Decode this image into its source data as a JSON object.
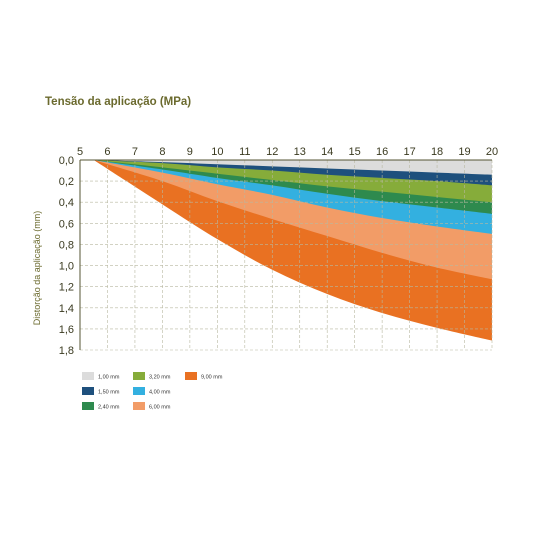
{
  "chart_data": {
    "type": "area",
    "title": "Tensão da aplicação (MPa)",
    "ylabel": "Distorção da aplicação (mm)",
    "xlabel": "",
    "x_ticks": [
      "5",
      "6",
      "7",
      "8",
      "9",
      "10",
      "11",
      "12",
      "13",
      "14",
      "15",
      "16",
      "17",
      "18",
      "19",
      "20"
    ],
    "y_ticks": [
      "0,0",
      "0,2",
      "0,4",
      "0,6",
      "0,8",
      "1,0",
      "1,2",
      "1,4",
      "1,6",
      "1,8"
    ],
    "xlim": [
      5,
      20
    ],
    "ylim": [
      0,
      1.8
    ],
    "y_inverted": true,
    "origin": {
      "x": 5.5,
      "y": 0
    },
    "grid": "dashed",
    "series": [
      {
        "name": "9,00 mm",
        "color": "#e97122",
        "x": [
          5.5,
          8,
          10,
          12,
          14,
          16,
          18,
          20
        ],
        "y": [
          0,
          0.42,
          0.75,
          1.04,
          1.27,
          1.45,
          1.59,
          1.71
        ]
      },
      {
        "name": "6,00 mm",
        "color": "#f29c67",
        "x": [
          5.5,
          8,
          10,
          12,
          14,
          16,
          18,
          20
        ],
        "y": [
          0,
          0.2,
          0.39,
          0.56,
          0.72,
          0.88,
          1.02,
          1.13
        ]
      },
      {
        "name": "4,00 mm",
        "color": "#33b0e0",
        "x": [
          5.5,
          8,
          10,
          12,
          14,
          16,
          18,
          20
        ],
        "y": [
          0,
          0.12,
          0.23,
          0.33,
          0.45,
          0.55,
          0.63,
          0.7
        ]
      },
      {
        "name": "2,40 mm",
        "color": "#2e8a4e",
        "x": [
          5.5,
          8,
          10,
          12,
          14,
          16,
          18,
          20
        ],
        "y": [
          0,
          0.09,
          0.17,
          0.24,
          0.32,
          0.39,
          0.45,
          0.51
        ]
      },
      {
        "name": "3,20 mm",
        "color": "#86ac3a",
        "x": [
          5.5,
          8,
          10,
          12,
          14,
          16,
          18,
          20
        ],
        "y": [
          0,
          0.07,
          0.13,
          0.19,
          0.25,
          0.3,
          0.35,
          0.4
        ]
      },
      {
        "name": "1,50 mm",
        "color": "#1e507d",
        "x": [
          5.5,
          8,
          10,
          12,
          14,
          16,
          18,
          20
        ],
        "y": [
          0,
          0.03,
          0.07,
          0.1,
          0.14,
          0.17,
          0.2,
          0.24
        ]
      },
      {
        "name": "1,00 mm",
        "color": "#dcdcdc",
        "x": [
          5.5,
          8,
          10,
          12,
          14,
          16,
          18,
          20
        ],
        "y": [
          0,
          0.02,
          0.04,
          0.06,
          0.08,
          0.1,
          0.12,
          0.14
        ]
      }
    ],
    "legend": [
      {
        "label": "1,00 mm",
        "color": "#dcdcdc"
      },
      {
        "label": "1,50 mm",
        "color": "#1e507d"
      },
      {
        "label": "2,40 mm",
        "color": "#2e8a4e"
      },
      {
        "label": "3,20 mm",
        "color": "#86ac3a"
      },
      {
        "label": "4,00 mm",
        "color": "#33b0e0"
      },
      {
        "label": "6,00 mm",
        "color": "#f29c67"
      },
      {
        "label": "9,00 mm",
        "color": "#e97122"
      }
    ],
    "legend_position": "bottom-left"
  }
}
